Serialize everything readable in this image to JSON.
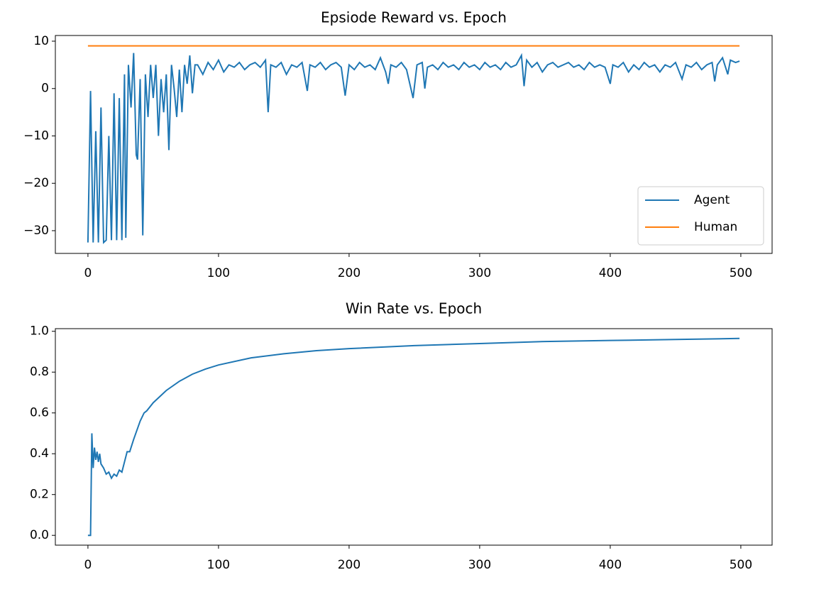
{
  "chart_data": [
    {
      "type": "line",
      "title": "Epsiode Reward vs. Epoch",
      "xlim": [
        -24.95,
        523.95
      ],
      "ylim": [
        -34.8,
        11.2
      ],
      "xticks": [
        0,
        100,
        200,
        300,
        400,
        500
      ],
      "yticks": [
        {
          "value": -30,
          "label": "−30"
        },
        {
          "value": -20,
          "label": "−20"
        },
        {
          "value": -10,
          "label": "−10"
        },
        0,
        10
      ],
      "legend": "lower right",
      "series": [
        {
          "name": "Agent",
          "color": "#1f77b4",
          "x": [
            0,
            2,
            4,
            6,
            8,
            10,
            12,
            14,
            16,
            18,
            20,
            22,
            24,
            26,
            28,
            29,
            31,
            33,
            35,
            37,
            38,
            40,
            42,
            44,
            46,
            48,
            50,
            52,
            54,
            56,
            58,
            60,
            62,
            64,
            66,
            68,
            70,
            72,
            74,
            76,
            78,
            80,
            82,
            84,
            88,
            92,
            96,
            100,
            104,
            108,
            112,
            116,
            120,
            124,
            128,
            132,
            136,
            138,
            140,
            144,
            148,
            152,
            156,
            160,
            164,
            168,
            170,
            174,
            178,
            182,
            186,
            190,
            194,
            197,
            200,
            204,
            208,
            212,
            216,
            220,
            224,
            228,
            230,
            232,
            236,
            240,
            244,
            249,
            252,
            256,
            258,
            260,
            264,
            268,
            272,
            276,
            280,
            284,
            288,
            292,
            296,
            300,
            304,
            308,
            312,
            316,
            320,
            324,
            328,
            332,
            334,
            336,
            340,
            344,
            348,
            352,
            356,
            360,
            364,
            368,
            372,
            376,
            380,
            384,
            388,
            392,
            396,
            400,
            402,
            406,
            410,
            414,
            418,
            422,
            426,
            430,
            434,
            438,
            442,
            446,
            450,
            455,
            458,
            462,
            466,
            470,
            474,
            478,
            480,
            482,
            486,
            490,
            492,
            496,
            499
          ],
          "values": [
            -32.5,
            -0.5,
            -32.5,
            -9,
            -32.5,
            -4,
            -32.5,
            -32,
            -10,
            -32,
            -1,
            -32,
            -2,
            -32,
            3,
            -31.5,
            5,
            -4,
            7.5,
            -14,
            -15,
            2,
            -31,
            3,
            -6,
            5,
            -2,
            5,
            -10,
            2,
            -5,
            3,
            -13,
            5,
            0,
            -6,
            4,
            -5,
            5,
            1,
            7,
            -1,
            5,
            5,
            3,
            5.5,
            4,
            6,
            3.5,
            5,
            4.5,
            5.5,
            4,
            5,
            5.5,
            4.5,
            6,
            -5,
            5,
            4.5,
            5.5,
            3,
            5,
            4.5,
            5.5,
            -0.5,
            5,
            4.5,
            5.5,
            4,
            5,
            5.5,
            4.5,
            -1.5,
            5,
            4,
            5.5,
            4.5,
            5,
            4,
            6.5,
            3.5,
            1,
            5,
            4.5,
            5.5,
            4,
            -2,
            5,
            5.5,
            0,
            4.5,
            5,
            4,
            5.5,
            4.5,
            5,
            4,
            5.5,
            4.5,
            5,
            4,
            5.5,
            4.5,
            5,
            4,
            5.5,
            4.5,
            5,
            7,
            0.5,
            6,
            4.5,
            5.5,
            3.5,
            5,
            5.5,
            4.5,
            5,
            5.5,
            4.5,
            5,
            4,
            5.5,
            4.5,
            5,
            4.5,
            1,
            5,
            4.5,
            5.5,
            3.5,
            5,
            4,
            5.5,
            4.5,
            5,
            3.5,
            5,
            4.5,
            5.5,
            2,
            5,
            4.5,
            5.5,
            4,
            5,
            5.5,
            1.5,
            5,
            6.5,
            3,
            6,
            5.5,
            5.8
          ]
        },
        {
          "name": "Human",
          "color": "#ff7f0e",
          "x": [
            0,
            499
          ],
          "values": [
            9,
            9
          ]
        }
      ]
    },
    {
      "type": "line",
      "title": "Win Rate vs. Epoch",
      "xlim": [
        -24.95,
        523.95
      ],
      "ylim": [
        -0.048,
        1.013
      ],
      "xticks": [
        0,
        100,
        200,
        300,
        400,
        500
      ],
      "yticks": [
        {
          "value": 0,
          "label": "0.0"
        },
        0.2,
        0.4,
        0.6,
        0.8,
        {
          "value": 1,
          "label": "1.0"
        }
      ],
      "series": [
        {
          "color": "#1f77b4",
          "x": [
            0,
            2,
            3,
            4,
            5,
            6,
            7,
            8,
            9,
            10,
            12,
            14,
            16,
            18,
            20,
            22,
            24,
            26,
            28,
            30,
            32,
            35,
            40,
            43,
            45,
            50,
            60,
            70,
            80,
            90,
            100,
            125,
            150,
            175,
            200,
            250,
            300,
            350,
            400,
            450,
            499
          ],
          "values": [
            0,
            0,
            0.5,
            0.33,
            0.43,
            0.37,
            0.41,
            0.36,
            0.4,
            0.35,
            0.33,
            0.3,
            0.31,
            0.28,
            0.3,
            0.29,
            0.32,
            0.31,
            0.36,
            0.41,
            0.41,
            0.47,
            0.56,
            0.6,
            0.61,
            0.65,
            0.71,
            0.755,
            0.79,
            0.815,
            0.835,
            0.87,
            0.89,
            0.905,
            0.915,
            0.93,
            0.94,
            0.95,
            0.955,
            0.96,
            0.965
          ]
        }
      ]
    }
  ]
}
